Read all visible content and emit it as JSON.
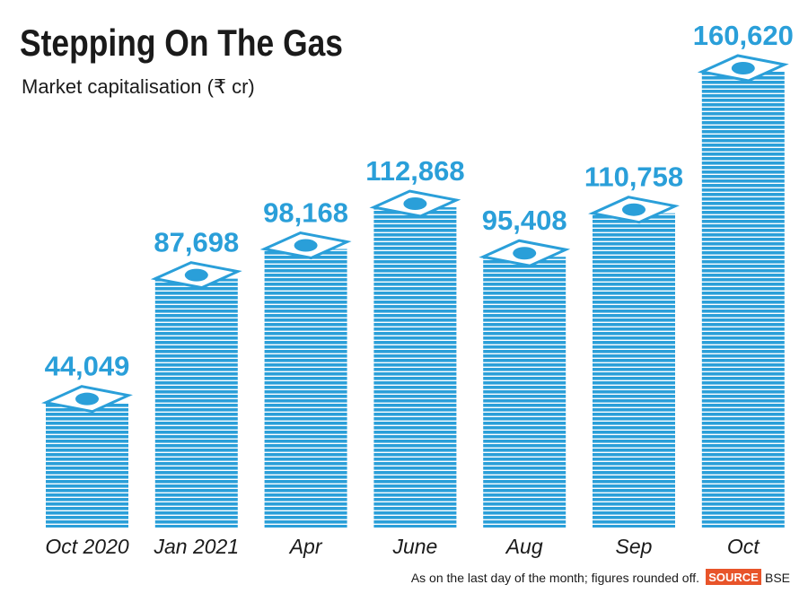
{
  "chart_data": {
    "type": "bar",
    "title": "Stepping On The Gas",
    "subtitle": "Market capitalisation (₹ cr)",
    "categories": [
      "Oct 2020",
      "Jan 2021",
      "Apr",
      "June",
      "Aug",
      "Sep",
      "Oct"
    ],
    "values": [
      44049,
      87698,
      98168,
      112868,
      95408,
      110758,
      160620
    ],
    "value_labels": [
      "44,049",
      "87,698",
      "98,168",
      "112,868",
      "95,408",
      "110,758",
      "160,620"
    ],
    "color": "#2a9fd9",
    "note": "As on the last day of the month; figures rounded off.",
    "source_label": "SOURCE",
    "source": "BSE"
  }
}
